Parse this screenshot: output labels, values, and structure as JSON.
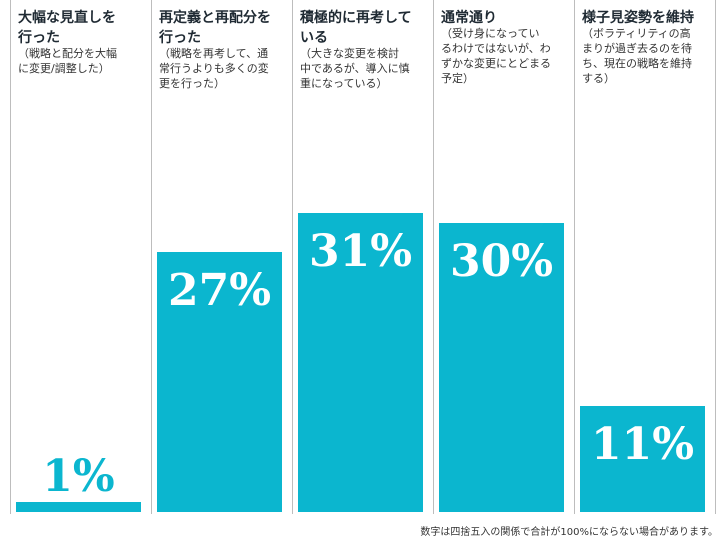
{
  "chart_data": {
    "type": "bar",
    "categories": [
      "大幅な見直しを\n行った",
      "再定義と再配分を\n行った",
      "積極的に再考して\nいる",
      "通常通り",
      "様子見姿勢を維持"
    ],
    "notes": [
      "（戦略と配分を大幅\nに変更/調整した）",
      "（戦略を再考して、通\n常行うよりも多くの変\n更を行った）",
      "（大きな変更を検討\n中であるが、導入に慎\n重になっている）",
      "（受け身になってい\nるわけではないが、わ\nずかな変更にとどまる\n予定）",
      "（ボラティリティの高\nまりが過ぎ去るのを待\nち、現在の戦略を維持\nする）"
    ],
    "values": [
      1,
      27,
      31,
      30,
      11
    ],
    "value_labels": [
      "1%",
      "27%",
      "31%",
      "30%",
      "11%"
    ],
    "title": "",
    "xlabel": "",
    "ylabel": "",
    "ylim": [
      0,
      36
    ],
    "grid": false,
    "footnote": "数字は四捨五入の関係で合計が100%にならない場合があります。",
    "colors": {
      "bar": "#0bb6cf",
      "divider": "#bdbdbd",
      "text": "#1f2a33"
    }
  }
}
